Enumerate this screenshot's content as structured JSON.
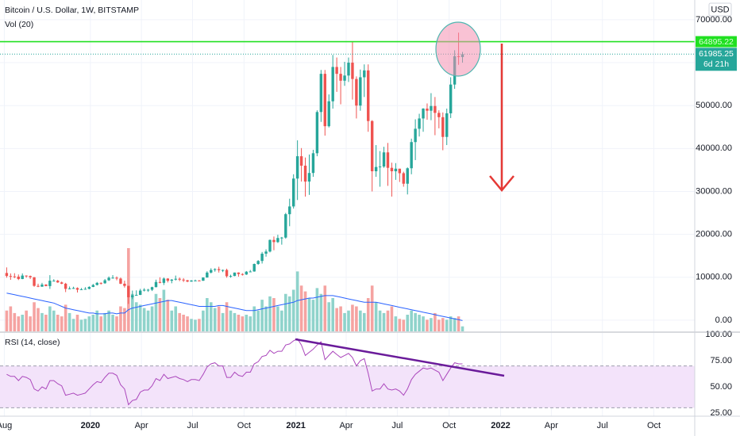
{
  "chart_data": [
    {
      "type": "candlestick",
      "title": "Bitcoin / U.S. Dollar, 1W, BITSTAMP",
      "volume_label": "Vol (20)",
      "currency": "USD",
      "countdown": "6d 21h",
      "up_color": "#26a69a",
      "down_color": "#ef5350",
      "volume_up_color": "#8fd3cb",
      "volume_down_color": "#f5a3a1",
      "volume_ma_color": "#2962ff",
      "level_color": "#21e021",
      "level": 64895.22,
      "open": [
        11000,
        10300,
        10200,
        10150,
        9600,
        10400,
        10300,
        10000,
        8000,
        7800,
        8300,
        7950,
        9200,
        9200,
        8800,
        8500,
        7300,
        7400,
        7500,
        7100,
        7200,
        7300,
        7750,
        8200,
        8700,
        8600,
        9300,
        9900,
        9900,
        9700,
        8500,
        8000,
        5350,
        5800,
        5900,
        6900,
        7100,
        7100,
        7700,
        8900,
        8700,
        9700,
        9200,
        9450,
        9650,
        9450,
        9300,
        9000,
        9250,
        9250,
        9200,
        9950,
        11100,
        11700,
        11900,
        11650,
        11700,
        10250,
        10300,
        11100,
        10750,
        10650,
        11300,
        11350,
        13100,
        13800,
        15500,
        16000,
        18700,
        18200,
        19150,
        19250,
        24700,
        26500,
        33000,
        38200,
        36000,
        32300,
        34300,
        38900,
        48500,
        57400,
        45200,
        51000,
        59000,
        57400,
        55800,
        57000,
        60000,
        56200,
        50000,
        56600,
        58200,
        46400,
        34700,
        35700,
        35800,
        39100,
        35500,
        34700,
        35300,
        34250,
        31800,
        35400,
        41500,
        44600,
        47000,
        49300,
        48800,
        49900,
        48300,
        47300,
        42700,
        48200,
        54900,
        61500,
        61300
      ],
      "high": [
        12300,
        10900,
        10950,
        10650,
        10900,
        10450,
        10400,
        10050,
        8500,
        8700,
        8400,
        10500,
        9550,
        9400,
        9000,
        8700,
        7850,
        7800,
        7650,
        7500,
        7700,
        7900,
        8450,
        8900,
        8800,
        9600,
        10200,
        10500,
        10200,
        9950,
        9200,
        8000,
        6900,
        6950,
        7300,
        7450,
        7300,
        7800,
        9450,
        10000,
        9950,
        9800,
        9600,
        10400,
        9950,
        9800,
        9400,
        9350,
        9450,
        9350,
        9990,
        11400,
        12100,
        12100,
        12450,
        11800,
        12000,
        10600,
        11100,
        11150,
        10950,
        11450,
        11700,
        13200,
        14000,
        15900,
        16500,
        18800,
        19500,
        19900,
        19400,
        25000,
        28300,
        34000,
        41900,
        40100,
        37900,
        38600,
        39700,
        48900,
        58300,
        58300,
        52600,
        61800,
        61200,
        59000,
        60200,
        61200,
        64850,
        56800,
        58400,
        59600,
        59600,
        46600,
        40800,
        39400,
        40400,
        41300,
        36700,
        36600,
        35300,
        34600,
        35600,
        42300,
        46800,
        48100,
        49400,
        50500,
        52900,
        52000,
        48900,
        48400,
        49300,
        56600,
        62900,
        67000,
        62500
      ],
      "low": [
        9900,
        9400,
        9800,
        9350,
        9550,
        9900,
        9600,
        7800,
        7700,
        7800,
        7900,
        7300,
        9050,
        8700,
        8400,
        6550,
        7200,
        7300,
        6450,
        7050,
        7150,
        7200,
        7700,
        8100,
        8300,
        8500,
        9150,
        9700,
        9300,
        8400,
        7600,
        3800,
        4900,
        5700,
        5850,
        6700,
        6600,
        6800,
        7650,
        8600,
        8200,
        8800,
        8600,
        9250,
        9100,
        8900,
        8850,
        8950,
        9150,
        9100,
        9150,
        9900,
        10900,
        11300,
        11100,
        11200,
        9900,
        9900,
        10250,
        10150,
        10400,
        10550,
        11250,
        11300,
        12900,
        13200,
        14800,
        15800,
        16300,
        18000,
        17600,
        19000,
        21900,
        26000,
        28000,
        32300,
        28800,
        29200,
        33400,
        38200,
        46200,
        43000,
        44900,
        49300,
        53200,
        50300,
        54600,
        55500,
        51400,
        47000,
        48800,
        52000,
        43900,
        30000,
        33400,
        31100,
        35500,
        31300,
        28800,
        32700,
        32200,
        31100,
        29300,
        34000,
        37300,
        42800,
        43900,
        46700,
        46600,
        43100,
        44700,
        39600,
        40800,
        47100,
        53900,
        59500,
        60000
      ],
      "close": [
        10300,
        10200,
        10150,
        9600,
        10400,
        10300,
        10000,
        8000,
        7800,
        8300,
        7950,
        9200,
        9200,
        8800,
        8500,
        7300,
        7400,
        7500,
        7100,
        7200,
        7300,
        7750,
        8200,
        8700,
        8600,
        9300,
        9900,
        9900,
        9700,
        8500,
        8000,
        5350,
        5800,
        5900,
        6900,
        7100,
        7100,
        7700,
        8900,
        8700,
        9700,
        9200,
        9450,
        9650,
        9450,
        9300,
        9000,
        9250,
        9250,
        9200,
        9950,
        11100,
        11700,
        11900,
        11650,
        11700,
        10250,
        10300,
        11100,
        10750,
        10650,
        11300,
        11350,
        13100,
        13800,
        15500,
        16000,
        18700,
        18200,
        19150,
        19250,
        24700,
        26500,
        33000,
        38200,
        36000,
        32300,
        34300,
        38900,
        48500,
        57400,
        45200,
        51000,
        59000,
        57400,
        55800,
        57000,
        60000,
        56200,
        50000,
        56600,
        58200,
        46400,
        34700,
        35700,
        35800,
        39100,
        35500,
        34700,
        35300,
        34250,
        31800,
        35400,
        41500,
        44600,
        47000,
        49300,
        48800,
        49900,
        48300,
        47300,
        42700,
        48200,
        54900,
        61500,
        61300,
        61985.25
      ],
      "volume": [
        25,
        30,
        22,
        18,
        20,
        25,
        18,
        35,
        28,
        22,
        20,
        30,
        25,
        20,
        18,
        32,
        22,
        15,
        20,
        14,
        15,
        18,
        20,
        25,
        18,
        22,
        25,
        20,
        18,
        30,
        28,
        100,
        45,
        35,
        32,
        28,
        25,
        30,
        45,
        40,
        50,
        38,
        25,
        30,
        22,
        20,
        18,
        15,
        14,
        15,
        25,
        40,
        35,
        28,
        30,
        22,
        35,
        25,
        22,
        20,
        18,
        20,
        18,
        30,
        25,
        38,
        30,
        42,
        40,
        30,
        25,
        45,
        42,
        50,
        72,
        55,
        48,
        40,
        38,
        52,
        45,
        55,
        35,
        40,
        28,
        30,
        22,
        25,
        32,
        30,
        25,
        22,
        40,
        55,
        35,
        25,
        22,
        25,
        30,
        18,
        15,
        14,
        20,
        25,
        22,
        20,
        18,
        14,
        16,
        22,
        14,
        16,
        14,
        18,
        16,
        18,
        6
      ],
      "volume_ma": [
        46,
        45,
        44,
        43,
        42,
        41,
        40,
        39,
        38,
        37,
        36,
        35,
        34,
        32,
        30,
        28,
        27,
        26,
        25,
        24,
        23,
        22,
        22,
        21,
        21,
        21,
        22,
        22,
        21,
        22,
        22,
        26,
        28,
        29,
        30,
        31,
        32,
        33,
        34,
        35,
        36,
        37,
        37,
        36,
        35,
        34,
        33,
        32,
        31,
        30,
        30,
        30,
        30,
        30,
        31,
        31,
        30,
        29,
        28,
        27,
        26,
        25,
        25,
        25,
        26,
        27,
        28,
        29,
        30,
        31,
        32,
        33,
        34,
        35,
        37,
        38,
        39,
        40,
        40,
        41,
        42,
        43,
        43,
        43,
        42,
        41,
        40,
        39,
        38,
        37,
        36,
        35,
        35,
        35,
        35,
        34,
        33,
        32,
        31,
        30,
        29,
        28,
        27,
        26,
        25,
        24,
        23,
        22,
        21,
        20,
        19,
        18,
        17,
        16,
        15,
        14,
        13
      ],
      "xlim": [
        -1.7,
        175.1
      ],
      "xticks": [
        {
          "value": -0.6,
          "label": "Aug"
        },
        {
          "value": 21.3,
          "label": "2020"
        },
        {
          "value": 34.3,
          "label": "Apr"
        },
        {
          "value": 47.3,
          "label": "Jul"
        },
        {
          "value": 60.4,
          "label": "Oct"
        },
        {
          "value": 73.6,
          "label": "2021"
        },
        {
          "value": 86.4,
          "label": "Apr"
        },
        {
          "value": 99.4,
          "label": "Jul"
        },
        {
          "value": 112.6,
          "label": "Oct"
        },
        {
          "value": 125.7,
          "label": "2022"
        },
        {
          "value": 138.6,
          "label": "Apr"
        },
        {
          "value": 151.6,
          "label": "Jul"
        },
        {
          "value": 164.7,
          "label": "Oct"
        }
      ],
      "ylim": [
        -2600,
        74600
      ],
      "yticks": [
        {
          "value": 0,
          "label": "0.00"
        },
        {
          "value": 10000,
          "label": "10000.00"
        },
        {
          "value": 20000,
          "label": "20000.00"
        },
        {
          "value": 30000,
          "label": "30000.00"
        },
        {
          "value": 40000,
          "label": "40000.00"
        },
        {
          "value": 50000,
          "label": "50000.00"
        },
        {
          "value": 60000,
          "label": "60000.00"
        },
        {
          "value": 70000,
          "label": "70000.00"
        }
      ],
      "grid": true
    },
    {
      "type": "line",
      "title": "RSI (14, close)",
      "color": "#ab47bc",
      "band_color": "#f3e3fa",
      "bands": [
        30,
        70
      ],
      "values": [
        62,
        60,
        60,
        56,
        60,
        59,
        57,
        48,
        46,
        50,
        48,
        56,
        56,
        53,
        51,
        42,
        43,
        44,
        42,
        43,
        44,
        48,
        52,
        55,
        54,
        59,
        63,
        63,
        61,
        52,
        48,
        33,
        37,
        38,
        45,
        47,
        47,
        51,
        58,
        56,
        62,
        58,
        59,
        60,
        58,
        57,
        55,
        57,
        57,
        56,
        62,
        69,
        72,
        73,
        70,
        70,
        59,
        59,
        64,
        61,
        60,
        64,
        64,
        72,
        74,
        79,
        80,
        85,
        82,
        84,
        84,
        90,
        91,
        94,
        96,
        90,
        80,
        83,
        86,
        90,
        93,
        76,
        80,
        84,
        81,
        78,
        80,
        82,
        78,
        70,
        75,
        77,
        63,
        46,
        48,
        48,
        53,
        48,
        47,
        48,
        46,
        42,
        48,
        57,
        62,
        65,
        68,
        67,
        68,
        66,
        64,
        56,
        62,
        68,
        73,
        72,
        72
      ],
      "ylim": [
        22,
        101.5
      ],
      "yticks": [
        {
          "value": 25,
          "label": "25.00"
        },
        {
          "value": 50,
          "label": "50.00"
        },
        {
          "value": 75,
          "label": "75.00"
        },
        {
          "value": 100,
          "label": "100.00"
        }
      ]
    }
  ]
}
